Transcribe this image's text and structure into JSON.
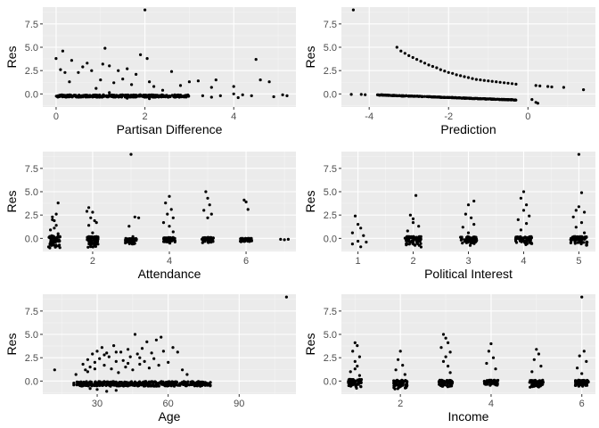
{
  "chart_data": [
    {
      "type": "scatter",
      "xlabel": "Partisan Difference",
      "ylabel": "Res",
      "xlim": [
        -0.3,
        5.4
      ],
      "ylim": [
        -1.4,
        9.3
      ],
      "xticks": [
        0,
        2,
        4
      ],
      "xtick_labels": [
        "0",
        "2",
        "4"
      ],
      "yticks": [
        0,
        2.5,
        5,
        7.5
      ],
      "ytick_labels": [
        "0.0",
        "2.5",
        "5.0",
        "7.5"
      ],
      "grid": true,
      "points": [
        [
          0.0,
          3.8
        ],
        [
          0.1,
          2.6
        ],
        [
          0.15,
          4.6
        ],
        [
          0.2,
          2.3
        ],
        [
          0.3,
          1.3
        ],
        [
          0.35,
          3.6
        ],
        [
          0.5,
          2.3
        ],
        [
          0.6,
          2.9
        ],
        [
          0.7,
          3.3
        ],
        [
          0.8,
          2.5
        ],
        [
          0.9,
          0.6
        ],
        [
          1.0,
          1.5
        ],
        [
          1.05,
          3.2
        ],
        [
          1.1,
          4.9
        ],
        [
          1.2,
          3.0
        ],
        [
          1.3,
          1.2
        ],
        [
          1.4,
          2.5
        ],
        [
          1.5,
          1.6
        ],
        [
          1.6,
          2.7
        ],
        [
          1.7,
          1.0
        ],
        [
          1.8,
          2.1
        ],
        [
          1.9,
          4.2
        ],
        [
          2.0,
          9.0
        ],
        [
          2.05,
          3.8
        ],
        [
          2.1,
          1.3
        ],
        [
          2.2,
          0.8
        ],
        [
          2.4,
          0.4
        ],
        [
          2.6,
          2.4
        ],
        [
          2.8,
          0.9
        ],
        [
          3.0,
          1.3
        ],
        [
          3.2,
          1.4
        ],
        [
          3.5,
          0.7
        ],
        [
          3.6,
          1.5
        ],
        [
          4.0,
          0.8
        ],
        [
          4.5,
          3.7
        ],
        [
          4.6,
          1.5
        ],
        [
          4.8,
          1.3
        ],
        [
          4.0,
          0.0
        ],
        [
          4.2,
          -0.1
        ],
        [
          4.4,
          -0.2
        ],
        [
          4.9,
          -0.3
        ],
        [
          5.1,
          -0.1
        ],
        [
          5.2,
          -0.2
        ]
      ],
      "band": {
        "x": [
          0,
          3.0
        ],
        "y": [
          -0.35,
          -0.1
        ]
      },
      "band_tail": [
        [
          3.3,
          -0.2
        ],
        [
          3.5,
          -0.35
        ],
        [
          3.7,
          -0.2
        ],
        [
          4.1,
          -0.4
        ],
        [
          2.1,
          -0.5
        ],
        [
          1.6,
          -0.45
        ],
        [
          1.2,
          0.15
        ]
      ]
    },
    {
      "type": "scatter",
      "xlabel": "Prediction",
      "ylabel": "Res",
      "xlim": [
        -4.7,
        1.7
      ],
      "ylim": [
        -1.4,
        9.3
      ],
      "xticks": [
        -4,
        -2,
        0
      ],
      "xtick_labels": [
        "-4",
        "-2",
        "0"
      ],
      "yticks": [
        0,
        2.5,
        5,
        7.5
      ],
      "ytick_labels": [
        "0.0",
        "2.5",
        "5.0",
        "7.5"
      ],
      "grid": true,
      "points": [
        [
          -4.4,
          9.0
        ],
        [
          -4.45,
          -0.05
        ],
        [
          -4.2,
          -0.05
        ],
        [
          -4.1,
          -0.08
        ],
        [
          -3.3,
          5.0
        ],
        [
          -3.2,
          4.6
        ],
        [
          -3.1,
          4.35
        ],
        [
          -3.0,
          4.1
        ],
        [
          -2.9,
          3.9
        ],
        [
          -2.8,
          3.7
        ],
        [
          -2.7,
          3.5
        ],
        [
          -2.6,
          3.3
        ],
        [
          -2.5,
          3.1
        ],
        [
          -2.4,
          2.95
        ],
        [
          -2.3,
          2.8
        ],
        [
          -2.2,
          2.6
        ],
        [
          -2.1,
          2.45
        ],
        [
          -2.0,
          2.3
        ],
        [
          -1.9,
          2.2
        ],
        [
          -1.8,
          2.05
        ],
        [
          -1.7,
          1.95
        ],
        [
          -1.6,
          1.85
        ],
        [
          -1.5,
          1.75
        ],
        [
          -1.4,
          1.65
        ],
        [
          -1.3,
          1.55
        ],
        [
          -1.2,
          1.5
        ],
        [
          -1.1,
          1.45
        ],
        [
          -1.0,
          1.4
        ],
        [
          -0.9,
          1.35
        ],
        [
          -0.8,
          1.3
        ],
        [
          -0.7,
          1.25
        ],
        [
          -0.6,
          1.2
        ],
        [
          -0.5,
          1.15
        ],
        [
          -0.4,
          1.1
        ],
        [
          -0.3,
          1.05
        ],
        [
          0.2,
          0.9
        ],
        [
          0.3,
          0.85
        ],
        [
          0.5,
          0.8
        ],
        [
          0.6,
          0.75
        ],
        [
          0.9,
          0.7
        ],
        [
          1.4,
          0.45
        ],
        [
          0.2,
          -0.9
        ],
        [
          0.25,
          -1.0
        ],
        [
          0.1,
          -0.6
        ]
      ],
      "line_band": {
        "x": [
          -3.8,
          -0.3
        ],
        "y": [
          -0.1,
          -0.65
        ]
      }
    },
    {
      "type": "scatter",
      "xlabel": "Attendance",
      "ylabel": "Res",
      "xlim": [
        0.7,
        7.3
      ],
      "ylim": [
        -1.4,
        9.3
      ],
      "xticks": [
        2,
        4,
        6
      ],
      "xtick_labels": [
        "2",
        "4",
        "6"
      ],
      "yticks": [
        0,
        2.5,
        5,
        7.5
      ],
      "ytick_labels": [
        "0.0",
        "2.5",
        "5.0",
        "7.5"
      ],
      "grid": true,
      "points": [
        [
          1.1,
          3.8
        ],
        [
          0.95,
          2.3
        ],
        [
          1.0,
          1.9
        ],
        [
          1.05,
          1.4
        ],
        [
          0.9,
          0.9
        ],
        [
          1.1,
          0.5
        ],
        [
          1.0,
          1.1
        ],
        [
          0.95,
          2.0
        ],
        [
          1.05,
          2.6
        ],
        [
          1.9,
          3.3
        ],
        [
          2.0,
          2.8
        ],
        [
          1.95,
          2.2
        ],
        [
          2.1,
          1.7
        ],
        [
          1.9,
          1.4
        ],
        [
          2.05,
          1.9
        ],
        [
          2.0,
          0.6
        ],
        [
          1.85,
          2.9
        ],
        [
          3.0,
          9.0
        ],
        [
          3.1,
          2.3
        ],
        [
          3.2,
          2.2
        ],
        [
          2.95,
          1.3
        ],
        [
          3.05,
          0.2
        ],
        [
          4.0,
          4.5
        ],
        [
          3.9,
          3.8
        ],
        [
          4.05,
          3.1
        ],
        [
          3.95,
          2.6
        ],
        [
          4.1,
          2.2
        ],
        [
          3.85,
          1.7
        ],
        [
          4.0,
          1.3
        ],
        [
          4.1,
          0.7
        ],
        [
          4.95,
          5.0
        ],
        [
          5.0,
          4.3
        ],
        [
          5.05,
          3.6
        ],
        [
          4.9,
          3.0
        ],
        [
          5.1,
          2.6
        ],
        [
          5.0,
          2.2
        ],
        [
          5.95,
          4.1
        ],
        [
          6.0,
          3.9
        ],
        [
          6.05,
          3.1
        ],
        [
          6.9,
          -0.1
        ],
        [
          7.0,
          -0.15
        ],
        [
          7.1,
          -0.1
        ]
      ],
      "clusters": [
        1,
        2,
        3,
        4,
        5,
        6
      ],
      "cluster_ranges": [
        [
          -1.1,
          0.3
        ],
        [
          -1.0,
          0.2
        ],
        [
          -0.7,
          0.0
        ],
        [
          -0.6,
          0.1
        ],
        [
          -0.5,
          0.1
        ],
        [
          -0.4,
          0.0
        ]
      ]
    },
    {
      "type": "scatter",
      "xlabel": "Political Interest",
      "ylabel": "Res",
      "xlim": [
        0.7,
        5.3
      ],
      "ylim": [
        -1.4,
        9.3
      ],
      "xticks": [
        1,
        2,
        3,
        4,
        5
      ],
      "xtick_labels": [
        "1",
        "2",
        "3",
        "4",
        "5"
      ],
      "yticks": [
        0,
        2.5,
        5,
        7.5
      ],
      "ytick_labels": [
        "0.0",
        "2.5",
        "5.0",
        "7.5"
      ],
      "grid": true,
      "points": [
        [
          0.95,
          2.4
        ],
        [
          1.0,
          1.5
        ],
        [
          1.05,
          1.1
        ],
        [
          0.9,
          0.6
        ],
        [
          1.1,
          0.3
        ],
        [
          1.0,
          -0.3
        ],
        [
          1.15,
          -0.4
        ],
        [
          1.05,
          -0.9
        ],
        [
          0.9,
          -0.6
        ],
        [
          2.05,
          4.6
        ],
        [
          1.95,
          2.5
        ],
        [
          2.0,
          2.1
        ],
        [
          2.1,
          1.3
        ],
        [
          1.9,
          0.8
        ],
        [
          2.0,
          1.7
        ],
        [
          3.1,
          4.0
        ],
        [
          3.0,
          3.6
        ],
        [
          2.95,
          2.6
        ],
        [
          3.05,
          2.2
        ],
        [
          3.1,
          1.5
        ],
        [
          2.9,
          1.2
        ],
        [
          3.0,
          0.6
        ],
        [
          4.0,
          5.0
        ],
        [
          3.95,
          4.3
        ],
        [
          4.05,
          3.6
        ],
        [
          4.0,
          3.0
        ],
        [
          4.1,
          2.4
        ],
        [
          3.9,
          2.0
        ],
        [
          4.05,
          1.6
        ],
        [
          3.95,
          0.9
        ],
        [
          5.0,
          9.0
        ],
        [
          5.05,
          4.9
        ],
        [
          5.0,
          3.4
        ],
        [
          4.95,
          3.0
        ],
        [
          5.1,
          2.8
        ],
        [
          4.9,
          2.3
        ],
        [
          5.05,
          1.7
        ],
        [
          4.95,
          1.2
        ],
        [
          5.1,
          0.6
        ]
      ],
      "clusters": [
        2,
        3,
        4,
        5
      ],
      "cluster_ranges": [
        [
          -1.0,
          0.2
        ],
        [
          -0.8,
          0.2
        ],
        [
          -0.8,
          0.2
        ],
        [
          -0.8,
          0.2
        ]
      ]
    },
    {
      "type": "scatter",
      "xlabel": "Age",
      "ylabel": "Res",
      "xlim": [
        7,
        114
      ],
      "ylim": [
        -1.4,
        9.3
      ],
      "xticks": [
        30,
        60,
        90
      ],
      "xtick_labels": [
        "30",
        "60",
        "90"
      ],
      "yticks": [
        0,
        2.5,
        5,
        7.5
      ],
      "ytick_labels": [
        "0.0",
        "2.5",
        "5.0",
        "7.5"
      ],
      "grid": true,
      "points": [
        [
          12,
          1.2
        ],
        [
          21,
          0.7
        ],
        [
          24,
          1.8
        ],
        [
          25,
          1.2
        ],
        [
          26,
          2.3
        ],
        [
          27,
          1.5
        ],
        [
          28,
          2.9
        ],
        [
          29,
          2.0
        ],
        [
          30,
          3.2
        ],
        [
          31,
          2.4
        ],
        [
          32,
          3.6
        ],
        [
          33,
          1.7
        ],
        [
          34,
          3.0
        ],
        [
          35,
          2.6
        ],
        [
          36,
          1.3
        ],
        [
          37,
          3.8
        ],
        [
          38,
          2.1
        ],
        [
          39,
          0.9
        ],
        [
          40,
          3.1
        ],
        [
          41,
          2.2
        ],
        [
          42,
          1.5
        ],
        [
          43,
          3.4
        ],
        [
          44,
          2.6
        ],
        [
          45,
          1.2
        ],
        [
          46,
          5.0
        ],
        [
          47,
          2.9
        ],
        [
          48,
          1.8
        ],
        [
          49,
          3.5
        ],
        [
          50,
          2.1
        ],
        [
          51,
          4.2
        ],
        [
          52,
          1.4
        ],
        [
          53,
          3.0
        ],
        [
          54,
          2.4
        ],
        [
          55,
          4.4
        ],
        [
          56,
          1.7
        ],
        [
          57,
          4.7
        ],
        [
          58,
          3.2
        ],
        [
          60,
          2.0
        ],
        [
          62,
          3.6
        ],
        [
          64,
          3.1
        ],
        [
          66,
          1.2
        ],
        [
          68,
          0.7
        ],
        [
          26,
          1.0
        ],
        [
          29,
          1.3
        ],
        [
          33,
          2.8
        ],
        [
          38,
          3.1
        ],
        [
          43,
          1.9
        ],
        [
          48,
          2.5
        ],
        [
          110,
          9.0
        ],
        [
          30,
          -0.9
        ],
        [
          34,
          -1.1
        ],
        [
          38,
          -1.0
        ],
        [
          27,
          -0.8
        ]
      ],
      "band": {
        "x": [
          20,
          78
        ],
        "y": [
          -0.55,
          -0.05
        ]
      }
    },
    {
      "type": "scatter",
      "xlabel": "Income",
      "ylabel": "Res",
      "xlim": [
        0.7,
        6.3
      ],
      "ylim": [
        -1.4,
        9.3
      ],
      "xticks": [
        2,
        4,
        6
      ],
      "xtick_labels": [
        "2",
        "4",
        "6"
      ],
      "yticks": [
        0,
        2.5,
        5,
        7.5
      ],
      "ytick_labels": [
        "0.0",
        "2.5",
        "5.0",
        "7.5"
      ],
      "grid": true,
      "points": [
        [
          1.0,
          4.1
        ],
        [
          1.05,
          3.8
        ],
        [
          0.95,
          3.2
        ],
        [
          1.1,
          2.6
        ],
        [
          1.0,
          2.1
        ],
        [
          1.05,
          1.6
        ],
        [
          0.9,
          1.0
        ],
        [
          1.1,
          0.6
        ],
        [
          1.0,
          1.3
        ],
        [
          2.0,
          3.2
        ],
        [
          1.95,
          2.3
        ],
        [
          2.05,
          1.7
        ],
        [
          1.9,
          1.2
        ],
        [
          2.1,
          0.7
        ],
        [
          2.95,
          5.0
        ],
        [
          3.0,
          4.6
        ],
        [
          3.05,
          4.1
        ],
        [
          2.9,
          3.6
        ],
        [
          3.1,
          3.1
        ],
        [
          3.0,
          2.6
        ],
        [
          2.95,
          2.1
        ],
        [
          3.05,
          1.6
        ],
        [
          3.1,
          0.9
        ],
        [
          4.0,
          4.0
        ],
        [
          3.95,
          3.2
        ],
        [
          4.05,
          2.5
        ],
        [
          3.9,
          1.9
        ],
        [
          4.1,
          1.3
        ],
        [
          5.0,
          3.4
        ],
        [
          5.05,
          2.9
        ],
        [
          4.95,
          2.3
        ],
        [
          5.1,
          1.6
        ],
        [
          4.9,
          1.0
        ],
        [
          6.0,
          9.0
        ],
        [
          6.05,
          3.2
        ],
        [
          5.95,
          2.7
        ],
        [
          6.1,
          2.1
        ],
        [
          5.9,
          1.4
        ],
        [
          6.0,
          0.8
        ]
      ],
      "clusters": [
        1,
        2,
        3,
        4,
        5,
        6
      ],
      "cluster_ranges": [
        [
          -0.8,
          0.2
        ],
        [
          -0.9,
          0.1
        ],
        [
          -0.7,
          0.1
        ],
        [
          -0.6,
          0.1
        ],
        [
          -0.7,
          0.1
        ],
        [
          -0.7,
          0.1
        ]
      ]
    }
  ]
}
